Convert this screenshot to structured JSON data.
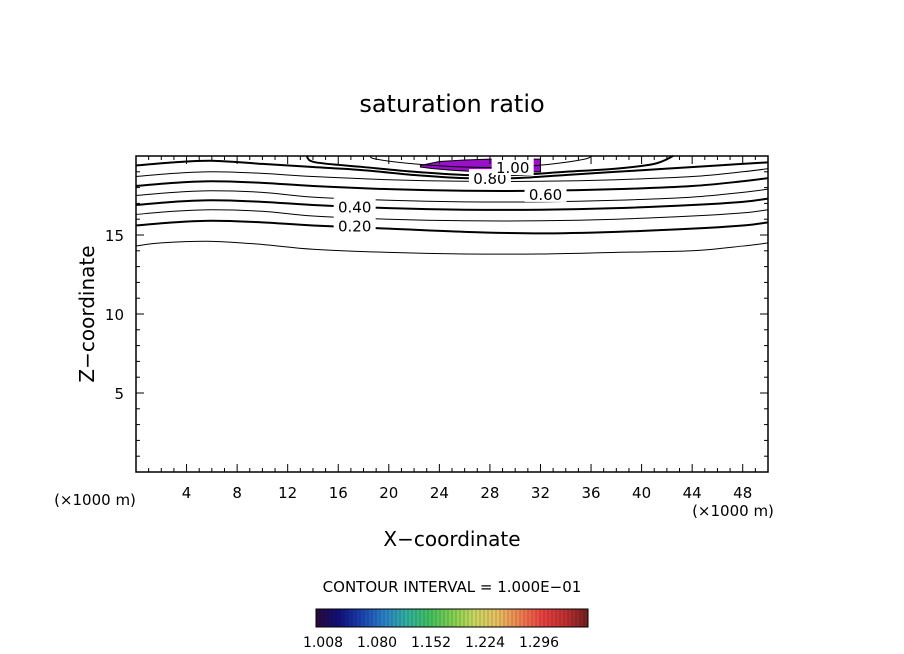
{
  "chart_data": {
    "type": "contour",
    "title": "saturation ratio",
    "xlabel": "X−coordinate",
    "ylabel": "Z−coordinate",
    "x_unit": "(×1000 m)",
    "y_unit": "(×1000 m)",
    "xlim": [
      0,
      50
    ],
    "ylim": [
      0,
      20
    ],
    "x_ticks": [
      "4",
      "8",
      "12",
      "16",
      "20",
      "24",
      "28",
      "32",
      "36",
      "40",
      "44",
      "48"
    ],
    "y_ticks": [
      "5",
      "10",
      "15"
    ],
    "contour_interval": "CONTOUR INTERVAL = 1.000E−01",
    "contours": [
      {
        "level": 0.1,
        "label": "",
        "bold": false,
        "points": [
          [
            0,
            14.3
          ],
          [
            2,
            14.5
          ],
          [
            6,
            14.6
          ],
          [
            10,
            14.4
          ],
          [
            14,
            14.1
          ],
          [
            20,
            13.9
          ],
          [
            26,
            13.8
          ],
          [
            32,
            13.8
          ],
          [
            38,
            13.9
          ],
          [
            44,
            14.0
          ],
          [
            48,
            14.3
          ],
          [
            50,
            14.5
          ]
        ]
      },
      {
        "level": 0.2,
        "label": "0.20",
        "bold": true,
        "points": [
          [
            0,
            15.6
          ],
          [
            3,
            15.8
          ],
          [
            6,
            15.9
          ],
          [
            10,
            15.8
          ],
          [
            14,
            15.6
          ],
          [
            20,
            15.4
          ],
          [
            26,
            15.2
          ],
          [
            32,
            15.1
          ],
          [
            38,
            15.2
          ],
          [
            44,
            15.4
          ],
          [
            48,
            15.6
          ],
          [
            50,
            15.8
          ]
        ]
      },
      {
        "level": 0.3,
        "label": "",
        "bold": false,
        "points": [
          [
            0,
            16.3
          ],
          [
            3,
            16.5
          ],
          [
            6,
            16.6
          ],
          [
            10,
            16.5
          ],
          [
            14,
            16.2
          ],
          [
            20,
            16.0
          ],
          [
            26,
            15.9
          ],
          [
            32,
            15.9
          ],
          [
            38,
            16.0
          ],
          [
            44,
            16.2
          ],
          [
            48,
            16.4
          ],
          [
            50,
            16.6
          ]
        ]
      },
      {
        "level": 0.4,
        "label": "0.40",
        "bold": true,
        "points": [
          [
            0,
            16.9
          ],
          [
            3,
            17.1
          ],
          [
            6,
            17.2
          ],
          [
            10,
            17.1
          ],
          [
            14,
            16.9
          ],
          [
            20,
            16.7
          ],
          [
            26,
            16.6
          ],
          [
            32,
            16.6
          ],
          [
            38,
            16.7
          ],
          [
            44,
            16.9
          ],
          [
            48,
            17.1
          ],
          [
            50,
            17.3
          ]
        ]
      },
      {
        "level": 0.5,
        "label": "",
        "bold": false,
        "points": [
          [
            0,
            17.5
          ],
          [
            3,
            17.7
          ],
          [
            6,
            17.8
          ],
          [
            10,
            17.7
          ],
          [
            14,
            17.4
          ],
          [
            20,
            17.2
          ],
          [
            26,
            17.1
          ],
          [
            32,
            17.1
          ],
          [
            38,
            17.2
          ],
          [
            44,
            17.4
          ],
          [
            48,
            17.7
          ],
          [
            50,
            17.9
          ]
        ]
      },
      {
        "level": 0.6,
        "label": "0.60",
        "bold": true,
        "points": [
          [
            0,
            18.1
          ],
          [
            3,
            18.3
          ],
          [
            6,
            18.4
          ],
          [
            10,
            18.3
          ],
          [
            14,
            18.1
          ],
          [
            20,
            17.9
          ],
          [
            26,
            17.8
          ],
          [
            32,
            17.8
          ],
          [
            38,
            17.9
          ],
          [
            44,
            18.1
          ],
          [
            48,
            18.4
          ],
          [
            50,
            18.6
          ]
        ]
      },
      {
        "level": 0.7,
        "label": "",
        "bold": false,
        "points": [
          [
            0,
            18.7
          ],
          [
            3,
            18.9
          ],
          [
            6,
            19.0
          ],
          [
            10,
            18.9
          ],
          [
            14,
            18.7
          ],
          [
            20,
            18.5
          ],
          [
            26,
            18.4
          ],
          [
            32,
            18.4
          ],
          [
            38,
            18.5
          ],
          [
            44,
            18.7
          ],
          [
            48,
            19.0
          ],
          [
            50,
            19.2
          ]
        ]
      },
      {
        "level": 0.8,
        "label": "0.80",
        "bold": true,
        "points": [
          [
            0,
            19.4
          ],
          [
            3,
            19.6
          ],
          [
            6,
            19.7
          ],
          [
            10,
            19.5
          ],
          [
            14,
            19.3
          ],
          [
            18,
            19.1
          ],
          [
            22,
            18.8
          ],
          [
            26,
            18.6
          ],
          [
            30,
            18.6
          ],
          [
            34,
            18.8
          ],
          [
            38,
            19.0
          ],
          [
            42,
            19.2
          ],
          [
            46,
            19.4
          ],
          [
            50,
            19.6
          ]
        ]
      },
      {
        "level": 0.9,
        "label": "",
        "bold": true,
        "points": [
          [
            13.5,
            20
          ],
          [
            14.2,
            19.6
          ],
          [
            18,
            19.3
          ],
          [
            22,
            19.0
          ],
          [
            26,
            18.8
          ],
          [
            30,
            18.8
          ],
          [
            34,
            19.0
          ],
          [
            38,
            19.2
          ],
          [
            41,
            19.5
          ],
          [
            42.5,
            20
          ]
        ]
      },
      {
        "level": 1.0,
        "label": "1.00",
        "bold": false,
        "points": [
          [
            18.5,
            20
          ],
          [
            19,
            19.8
          ],
          [
            22,
            19.5
          ],
          [
            26,
            19.3
          ],
          [
            30,
            19.3
          ],
          [
            33,
            19.5
          ],
          [
            35.5,
            19.8
          ],
          [
            36,
            20
          ]
        ]
      }
    ],
    "contour_labels": [
      {
        "text": "0.20",
        "x": 17.3,
        "y": 15.6
      },
      {
        "text": "0.40",
        "x": 17.3,
        "y": 16.8
      },
      {
        "text": "0.60",
        "x": 32.4,
        "y": 17.6
      },
      {
        "text": "0.80",
        "x": 28.0,
        "y": 18.6
      },
      {
        "text": "1.00",
        "x": 29.8,
        "y": 19.3
      }
    ],
    "shaded_region": {
      "color": "#9a10c8",
      "points": [
        [
          22.5,
          19.4
        ],
        [
          24,
          19.65
        ],
        [
          26,
          19.75
        ],
        [
          28,
          19.8
        ],
        [
          30,
          19.8
        ],
        [
          32,
          19.8
        ],
        [
          32,
          19.0
        ],
        [
          30,
          18.95
        ],
        [
          29,
          18.9
        ],
        [
          27,
          19.0
        ],
        [
          25,
          19.1
        ],
        [
          23.5,
          19.2
        ],
        [
          22.5,
          19.3
        ]
      ]
    },
    "colorbar": {
      "tick_labels": [
        "1.008",
        "1.080",
        "1.152",
        "1.224",
        "1.296"
      ],
      "colors": [
        "#2a0a3a",
        "#10107a",
        "#1a40b0",
        "#2a80c8",
        "#30b0a0",
        "#40c060",
        "#80d050",
        "#c8d860",
        "#e8c060",
        "#f08050",
        "#e84040",
        "#c03030",
        "#702020"
      ]
    }
  }
}
